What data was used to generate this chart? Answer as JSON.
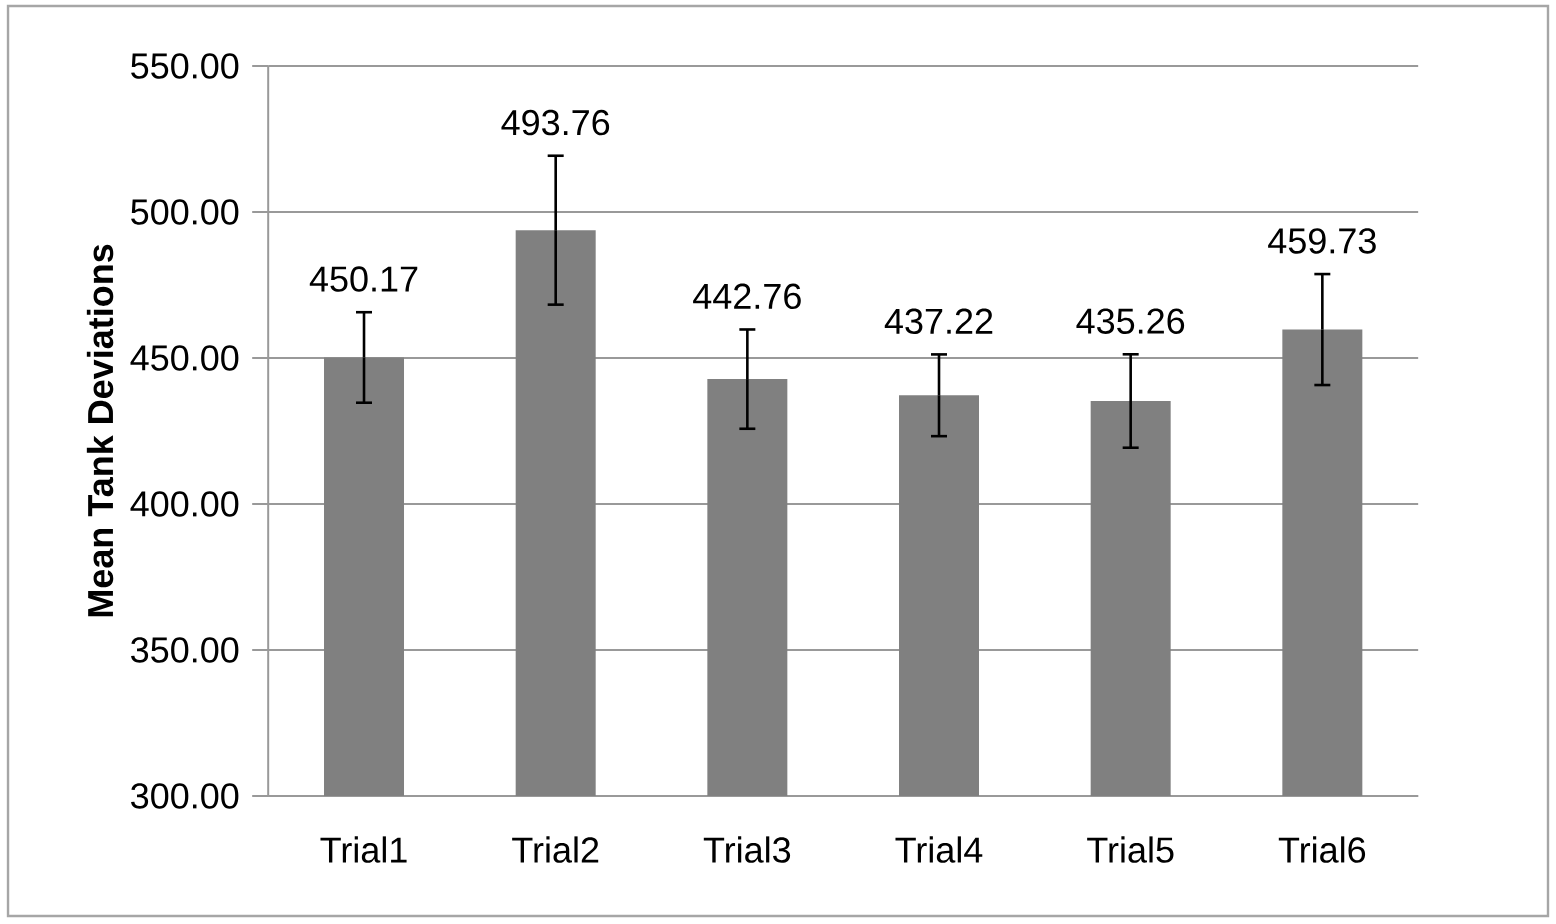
{
  "chart_data": {
    "type": "bar",
    "ylabel": "Mean Tank Deviations",
    "categories": [
      "Trial1",
      "Trial2",
      "Trial3",
      "Trial4",
      "Trial5",
      "Trial6"
    ],
    "values": [
      450.17,
      493.76,
      442.76,
      437.22,
      435.26,
      459.73
    ],
    "errors": [
      15.5,
      25.5,
      17,
      14,
      16,
      19
    ],
    "value_labels": [
      "450.17",
      "493.76",
      "442.76",
      "437.22",
      "435.26",
      "459.73"
    ],
    "color": "#808080",
    "ylim": [
      300,
      550
    ],
    "yticks": [
      {
        "value": 300,
        "label": "300.00"
      },
      {
        "value": 350,
        "label": "350.00"
      },
      {
        "value": 400,
        "label": "400.00"
      },
      {
        "value": 450,
        "label": "450.00"
      },
      {
        "value": 500,
        "label": "500.00"
      },
      {
        "value": 550,
        "label": "550.00"
      }
    ],
    "grid": "y"
  }
}
